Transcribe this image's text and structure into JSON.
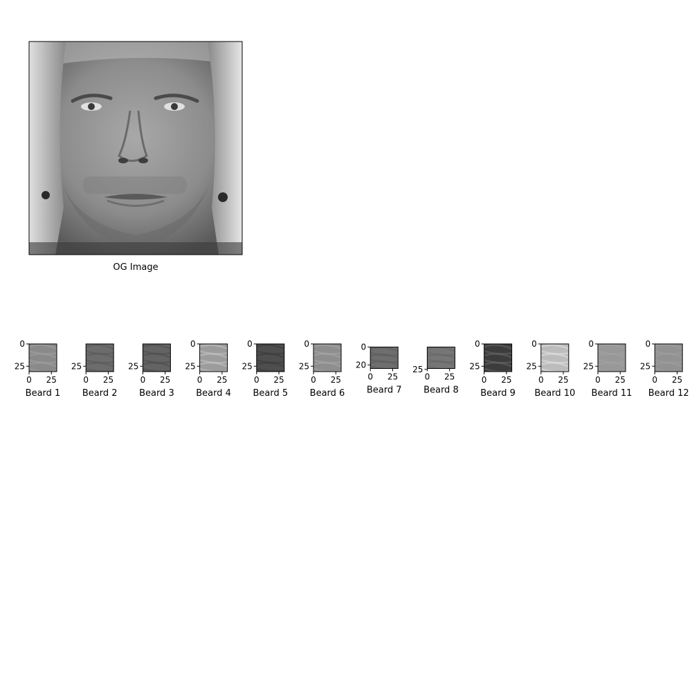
{
  "main_image": {
    "label": "OG Image",
    "subject": "grayscale portrait of a man with long light hair, stubble beard and earrings",
    "colors": {
      "skin": "#9a9a9a",
      "hair": "#d6d6d6",
      "shadow": "#2a2a2a",
      "background": "#1a1a1a"
    }
  },
  "chart_data": [
    {
      "type": "image",
      "title": "",
      "xlabel": "OG Image",
      "ylabel": "",
      "axes_visible": false
    },
    {
      "type": "heatmap",
      "xlabel": "Beard 1",
      "xticks": [
        "0",
        "25"
      ],
      "yticks": [
        "0",
        "25"
      ],
      "xlim": [
        0,
        31
      ],
      "ylim": [
        31,
        0
      ],
      "mean_gray": "#8a8a8a",
      "texture": "#a0a0a0"
    },
    {
      "type": "heatmap",
      "xlabel": "Beard 2",
      "xticks": [
        "0",
        "25"
      ],
      "yticks": [
        "25"
      ],
      "xlim": [
        0,
        31
      ],
      "ylim": [
        31,
        0
      ],
      "mean_gray": "#6c6c6c",
      "texture": "#5a5a5a"
    },
    {
      "type": "heatmap",
      "xlabel": "Beard 3",
      "xticks": [
        "0",
        "25"
      ],
      "yticks": [
        "25"
      ],
      "xlim": [
        0,
        31
      ],
      "ylim": [
        31,
        0
      ],
      "mean_gray": "#636363",
      "texture": "#4c4c4c"
    },
    {
      "type": "heatmap",
      "xlabel": "Beard 4",
      "xticks": [
        "0",
        "25"
      ],
      "yticks": [
        "0",
        "25"
      ],
      "xlim": [
        0,
        31
      ],
      "ylim": [
        31,
        0
      ],
      "mean_gray": "#9c9c9c",
      "texture": "#c4c4c4"
    },
    {
      "type": "heatmap",
      "xlabel": "Beard 5",
      "xticks": [
        "0",
        "25"
      ],
      "yticks": [
        "0",
        "25"
      ],
      "xlim": [
        0,
        31
      ],
      "ylim": [
        31,
        0
      ],
      "mean_gray": "#4e4e4e",
      "texture": "#3a3a3a"
    },
    {
      "type": "heatmap",
      "xlabel": "Beard 6",
      "xticks": [
        "0",
        "25"
      ],
      "yticks": [
        "0",
        "25"
      ],
      "xlim": [
        0,
        31
      ],
      "ylim": [
        31,
        0
      ],
      "mean_gray": "#8e8e8e",
      "texture": "#a8a8a8"
    },
    {
      "type": "heatmap",
      "xlabel": "Beard 7",
      "xticks": [
        "0",
        "25"
      ],
      "yticks": [
        "0",
        "20"
      ],
      "xlim": [
        0,
        31
      ],
      "ylim": [
        24,
        0
      ],
      "mean_gray": "#6e6e6e",
      "texture": "#5c5c5c"
    },
    {
      "type": "heatmap",
      "xlabel": "Beard 8",
      "xticks": [
        "0",
        "25"
      ],
      "yticks": [
        "25"
      ],
      "xlim": [
        0,
        31
      ],
      "ylim": [
        24,
        0
      ],
      "mean_gray": "#767676",
      "texture": "#666666"
    },
    {
      "type": "heatmap",
      "xlabel": "Beard 9",
      "xticks": [
        "0",
        "25"
      ],
      "yticks": [
        "0",
        "25"
      ],
      "xlim": [
        0,
        31
      ],
      "ylim": [
        31,
        0
      ],
      "mean_gray": "#3c3c3c",
      "texture": "#686868"
    },
    {
      "type": "heatmap",
      "xlabel": "Beard 10",
      "xticks": [
        "0",
        "25"
      ],
      "yticks": [
        "0",
        "25"
      ],
      "xlim": [
        0,
        31
      ],
      "ylim": [
        31,
        0
      ],
      "mean_gray": "#bcbcbc",
      "texture": "#e2e2e2"
    },
    {
      "type": "heatmap",
      "xlabel": "Beard 11",
      "xticks": [
        "0",
        "25"
      ],
      "yticks": [
        "0",
        "25"
      ],
      "xlim": [
        0,
        31
      ],
      "ylim": [
        31,
        0
      ],
      "mean_gray": "#989898",
      "texture": "#a2a2a2"
    },
    {
      "type": "heatmap",
      "xlabel": "Beard 12",
      "xticks": [
        "0",
        "25"
      ],
      "yticks": [
        "0",
        "25"
      ],
      "xlim": [
        0,
        31
      ],
      "ylim": [
        31,
        0
      ],
      "mean_gray": "#929292",
      "texture": "#9e9e9e"
    }
  ]
}
